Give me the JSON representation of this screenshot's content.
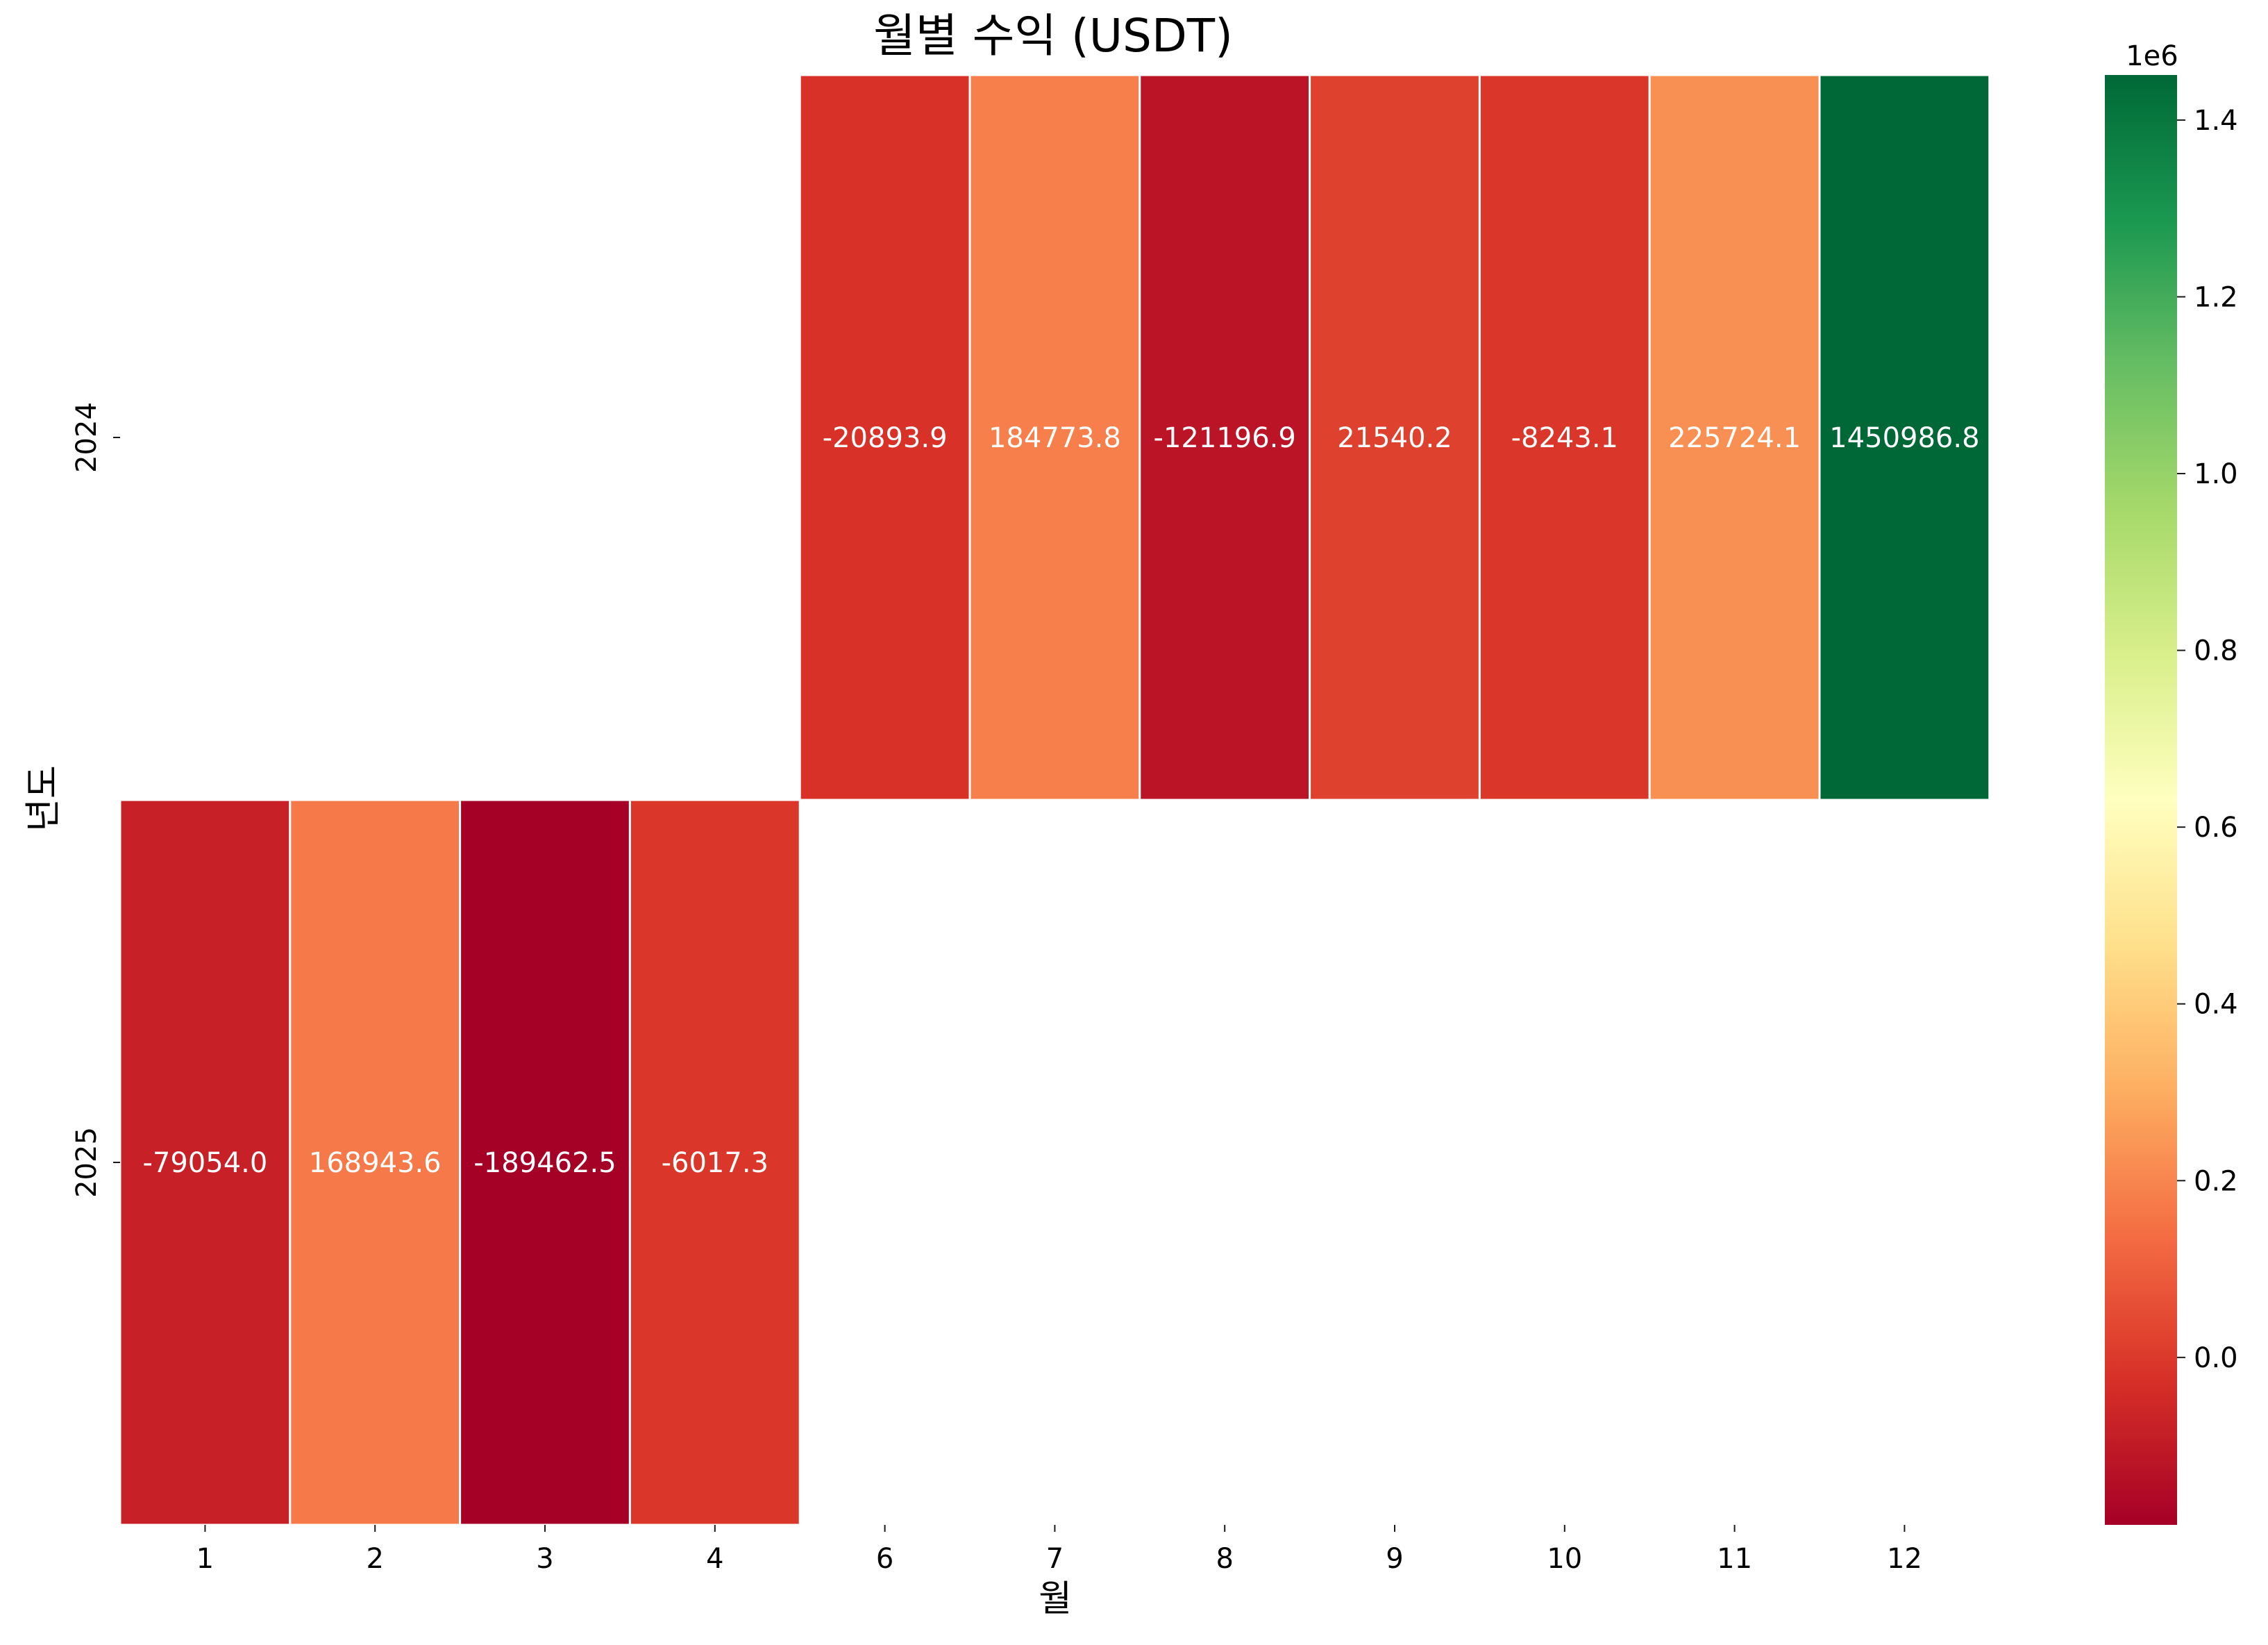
{
  "chart_data": {
    "type": "heatmap",
    "title": "월별 수익 (USDT)",
    "xlabel": "월",
    "ylabel": "년도",
    "x_categories": [
      "1",
      "2",
      "3",
      "4",
      "6",
      "7",
      "8",
      "9",
      "10",
      "11",
      "12"
    ],
    "y_categories": [
      "2024",
      "2025"
    ],
    "cells": [
      {
        "year": "2024",
        "month": "6",
        "value": -20893.9,
        "label": "-20893.9"
      },
      {
        "year": "2024",
        "month": "7",
        "value": 184773.8,
        "label": "184773.8"
      },
      {
        "year": "2024",
        "month": "8",
        "value": -121196.9,
        "label": "-121196.9"
      },
      {
        "year": "2024",
        "month": "9",
        "value": 21540.2,
        "label": "21540.2"
      },
      {
        "year": "2024",
        "month": "10",
        "value": -8243.1,
        "label": "-8243.1"
      },
      {
        "year": "2024",
        "month": "11",
        "value": 225724.1,
        "label": "225724.1"
      },
      {
        "year": "2024",
        "month": "12",
        "value": 1450986.8,
        "label": "1450986.8"
      },
      {
        "year": "2025",
        "month": "1",
        "value": -79054.0,
        "label": "-79054.0"
      },
      {
        "year": "2025",
        "month": "2",
        "value": 168943.6,
        "label": "168943.6"
      },
      {
        "year": "2025",
        "month": "3",
        "value": -189462.5,
        "label": "-189462.5"
      },
      {
        "year": "2025",
        "month": "4",
        "value": -6017.3,
        "label": "-6017.3"
      }
    ],
    "colorbar": {
      "colormap": "RdYlGn",
      "min": -189462.5,
      "max": 1450986.8,
      "ticks": [
        0.0,
        0.2,
        0.4,
        0.6,
        0.8,
        1.0,
        1.2,
        1.4
      ],
      "tick_labels": [
        "0.0",
        "0.2",
        "0.4",
        "0.6",
        "0.8",
        "1.0",
        "1.2",
        "1.4"
      ],
      "tick_scale": 1000000,
      "offset_label": "1e6"
    }
  }
}
